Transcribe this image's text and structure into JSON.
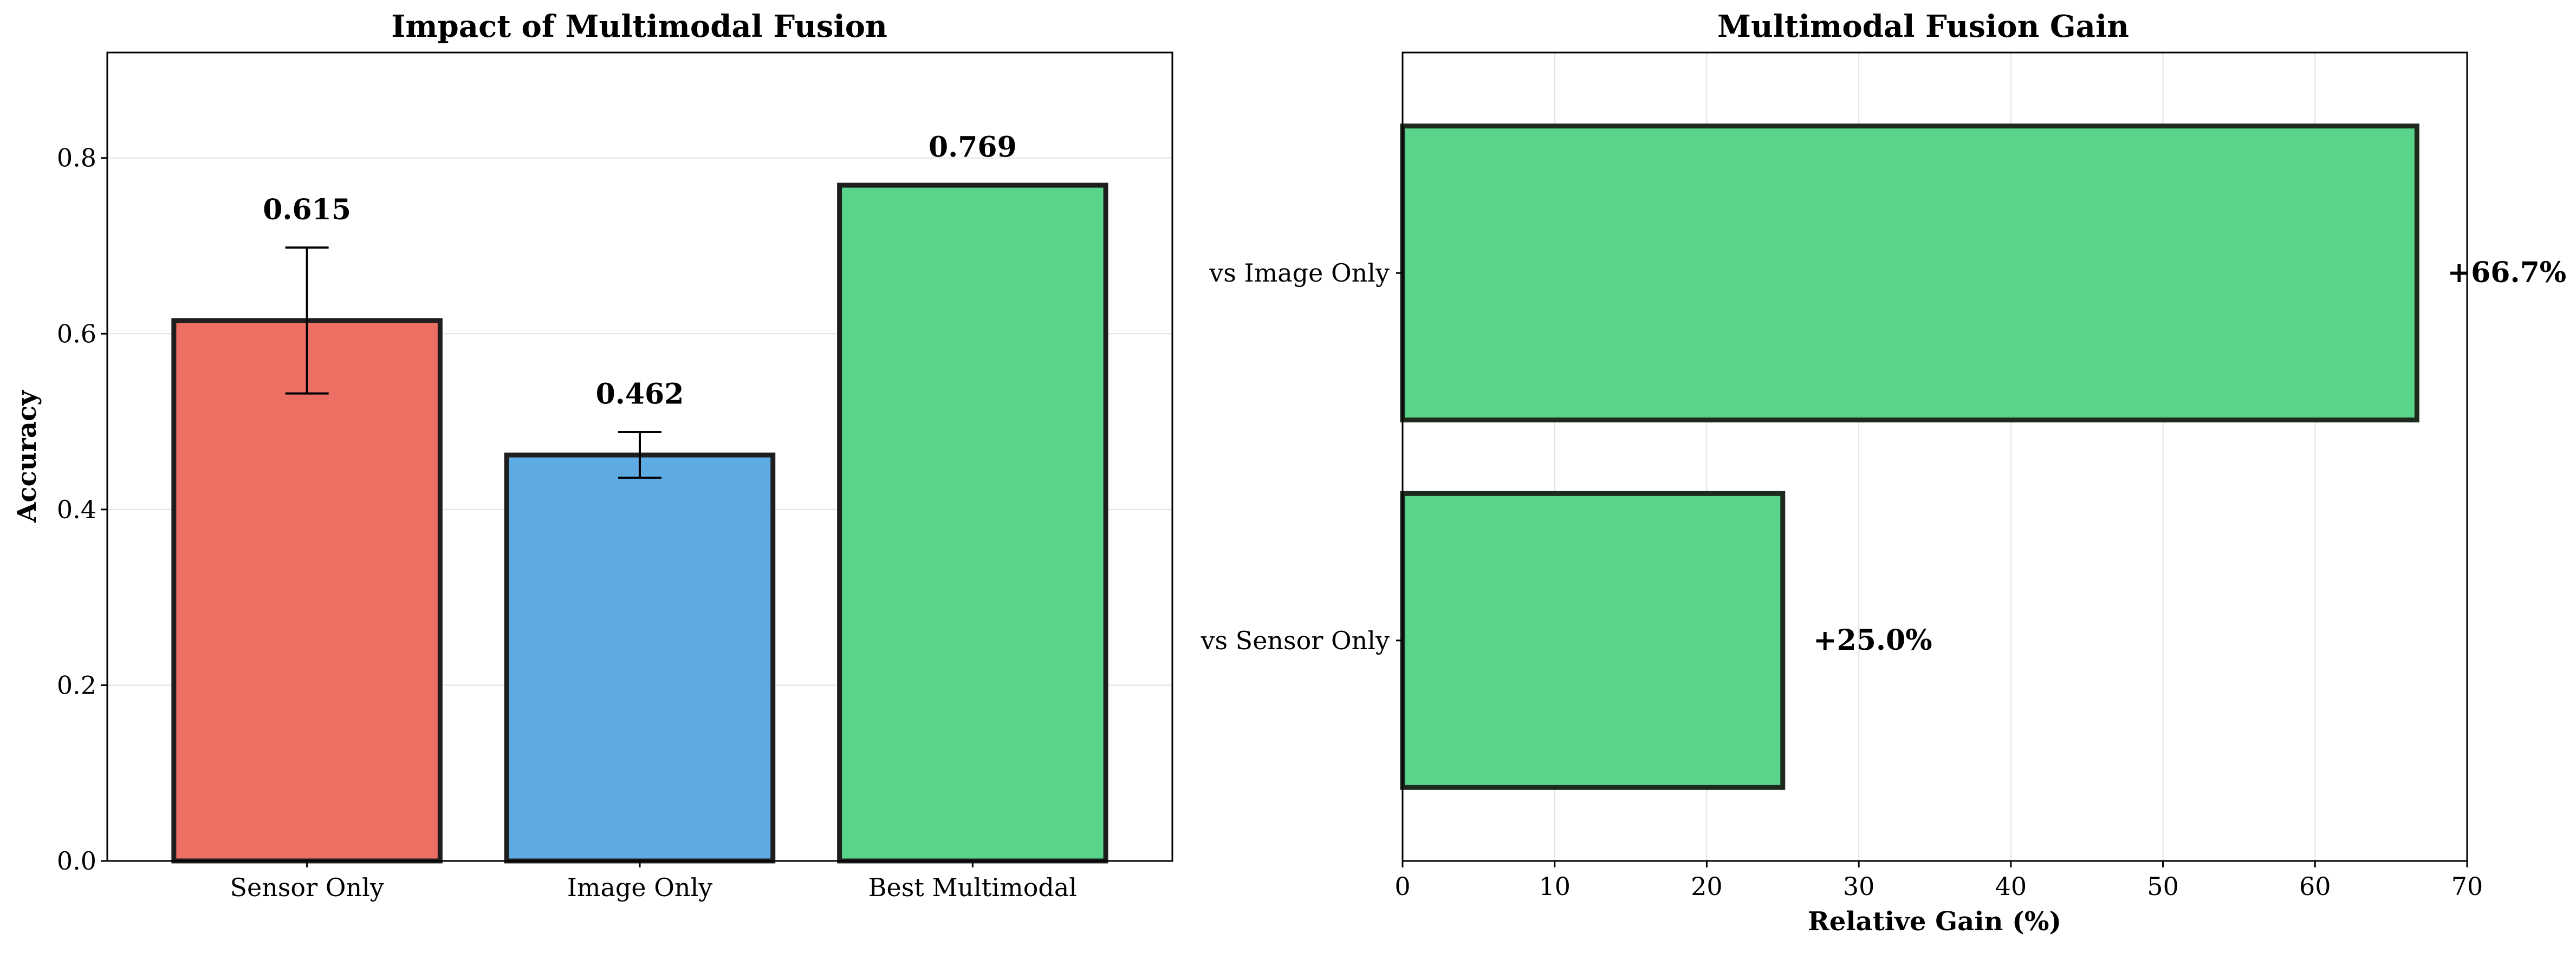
{
  "chart_data": [
    {
      "type": "bar",
      "title": "Impact of Multimodal Fusion",
      "xlabel": "",
      "ylabel": "Accuracy",
      "categories": [
        "Sensor Only",
        "Image Only",
        "Best Multimodal"
      ],
      "values": [
        0.615,
        0.462,
        0.769
      ],
      "value_labels": [
        "0.615",
        "0.462",
        "0.769"
      ],
      "errors": [
        0.083,
        0.026,
        0.0
      ],
      "colors": [
        "#eb6f62",
        "#5dabe2",
        "#58d58b"
      ],
      "ylim": [
        0,
        0.92
      ],
      "yticks": [
        0.0,
        0.2,
        0.4,
        0.6,
        0.8
      ],
      "ytick_labels": [
        "0.0",
        "0.2",
        "0.4",
        "0.6",
        "0.8"
      ],
      "grid": "horizontal",
      "legend": "none"
    },
    {
      "type": "bar",
      "orientation": "horizontal",
      "title": "Multimodal Fusion Gain",
      "xlabel": "Relative Gain (%)",
      "ylabel": "",
      "categories": [
        "vs Image Only",
        "vs Sensor Only"
      ],
      "values": [
        66.7,
        25.0
      ],
      "value_labels": [
        "+66.7%",
        "+25.0%"
      ],
      "colors": [
        "#58d58b",
        "#58d58b"
      ],
      "xlim": [
        0,
        70
      ],
      "xticks": [
        0,
        10,
        20,
        30,
        40,
        50,
        60,
        70
      ],
      "xtick_labels": [
        "0",
        "10",
        "20",
        "30",
        "40",
        "50",
        "60",
        "70"
      ],
      "grid": "vertical",
      "legend": "none"
    }
  ]
}
